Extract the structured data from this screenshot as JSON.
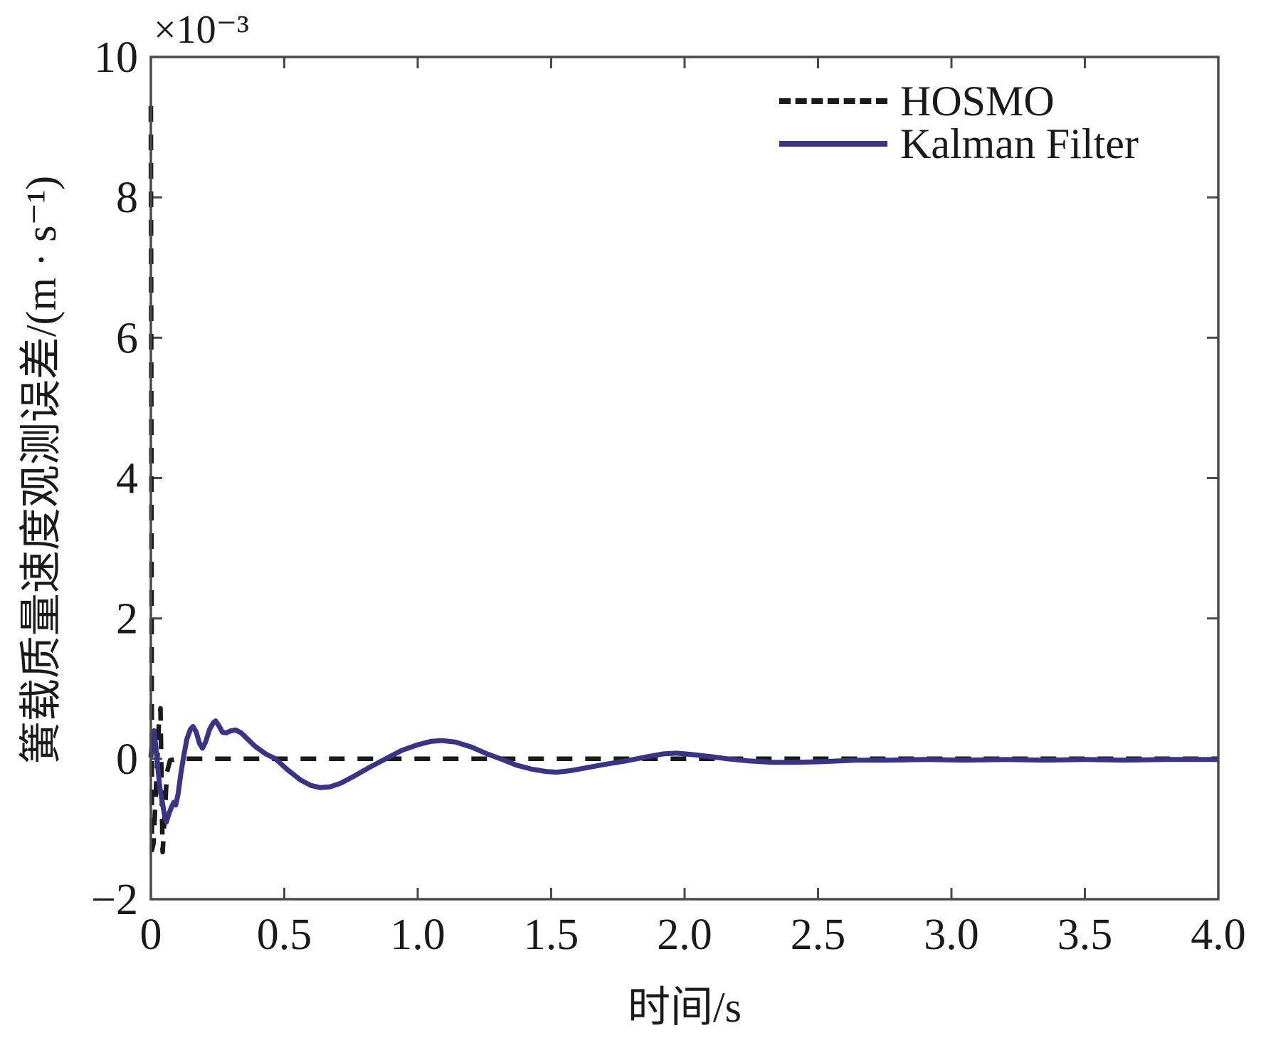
{
  "figure": {
    "background_color": "#ffffff",
    "frame_color": "#4a4a4a",
    "text_color": "#1a1a1a"
  },
  "legend": {
    "position": "top-right",
    "items": [
      {
        "label": "HOSMO",
        "line_style": "dashed",
        "color": "#1a1a1a"
      },
      {
        "label": "Kalman Filter",
        "line_style": "solid",
        "color": "#3a3489"
      }
    ]
  },
  "chart_data": {
    "type": "line",
    "title": "",
    "xlabel": "时间/s",
    "ylabel": "簧载质量速度观测误差/(m · s⁻¹)",
    "y_offset_label": "×10⁻³",
    "y_unit_multiplier": 0.001,
    "xlim": [
      0,
      4
    ],
    "ylim": [
      -2,
      10
    ],
    "grid": false,
    "legend_position": "top-right",
    "x_ticks": [
      {
        "value": 0,
        "label": "0"
      },
      {
        "value": 0.5,
        "label": "0.5"
      },
      {
        "value": 1.0,
        "label": "1.0"
      },
      {
        "value": 1.5,
        "label": "1.5"
      },
      {
        "value": 2.0,
        "label": "2.0"
      },
      {
        "value": 2.5,
        "label": "2.5"
      },
      {
        "value": 3.0,
        "label": "3.0"
      },
      {
        "value": 3.5,
        "label": "3.5"
      },
      {
        "value": 4.0,
        "label": "4.0"
      }
    ],
    "y_ticks": [
      {
        "value": -2,
        "label": "−2"
      },
      {
        "value": 0,
        "label": "0"
      },
      {
        "value": 2,
        "label": "2"
      },
      {
        "value": 4,
        "label": "4"
      },
      {
        "value": 6,
        "label": "6"
      },
      {
        "value": 8,
        "label": "8"
      },
      {
        "value": 10,
        "label": "10"
      }
    ],
    "series": [
      {
        "name": "HOSMO",
        "style": "dashed",
        "color": "#1a1a1a",
        "units": "1e-3 m/s",
        "points": [
          [
            0,
            9.3
          ],
          [
            0.002,
            4.0
          ],
          [
            0.004,
            -1.3
          ],
          [
            0.01,
            -1.2
          ],
          [
            0.03,
            0.5
          ],
          [
            0.036,
            0.72
          ],
          [
            0.044,
            -1.33
          ],
          [
            0.052,
            -0.8
          ],
          [
            0.06,
            -0.2
          ],
          [
            0.072,
            -0.02
          ],
          [
            0.1,
            0.0
          ],
          [
            0.5,
            0.0
          ],
          [
            1.0,
            0.0
          ],
          [
            1.5,
            0.0
          ],
          [
            2.0,
            0.0
          ],
          [
            2.5,
            0.0
          ],
          [
            3.0,
            0.0
          ],
          [
            3.5,
            0.0
          ],
          [
            4.0,
            0.0
          ]
        ]
      },
      {
        "name": "Kalman Filter",
        "style": "solid",
        "color": "#3a3489",
        "units": "1e-3 m/s",
        "points": [
          [
            0,
            0.02
          ],
          [
            0.005,
            0.22
          ],
          [
            0.012,
            0.4
          ],
          [
            0.018,
            0.18
          ],
          [
            0.025,
            -0.08
          ],
          [
            0.033,
            -0.4
          ],
          [
            0.042,
            -0.6
          ],
          [
            0.05,
            -0.78
          ],
          [
            0.058,
            -0.9
          ],
          [
            0.068,
            -0.78
          ],
          [
            0.078,
            -0.68
          ],
          [
            0.086,
            -0.62
          ],
          [
            0.093,
            -0.66
          ],
          [
            0.102,
            -0.5
          ],
          [
            0.112,
            -0.22
          ],
          [
            0.122,
            0.02
          ],
          [
            0.135,
            0.28
          ],
          [
            0.148,
            0.42
          ],
          [
            0.158,
            0.46
          ],
          [
            0.17,
            0.38
          ],
          [
            0.182,
            0.22
          ],
          [
            0.193,
            0.15
          ],
          [
            0.205,
            0.24
          ],
          [
            0.22,
            0.42
          ],
          [
            0.235,
            0.52
          ],
          [
            0.243,
            0.54
          ],
          [
            0.255,
            0.47
          ],
          [
            0.268,
            0.38
          ],
          [
            0.282,
            0.37
          ],
          [
            0.3,
            0.4
          ],
          [
            0.318,
            0.41
          ],
          [
            0.338,
            0.37
          ],
          [
            0.36,
            0.29
          ],
          [
            0.39,
            0.18
          ],
          [
            0.43,
            0.07
          ],
          [
            0.467,
            0.0
          ],
          [
            0.51,
            -0.15
          ],
          [
            0.56,
            -0.3
          ],
          [
            0.6,
            -0.38
          ],
          [
            0.635,
            -0.41
          ],
          [
            0.67,
            -0.4
          ],
          [
            0.71,
            -0.35
          ],
          [
            0.76,
            -0.25
          ],
          [
            0.82,
            -0.12
          ],
          [
            0.88,
            0.0
          ],
          [
            0.94,
            0.12
          ],
          [
            1.0,
            0.2
          ],
          [
            1.05,
            0.25
          ],
          [
            1.09,
            0.26
          ],
          [
            1.14,
            0.24
          ],
          [
            1.2,
            0.17
          ],
          [
            1.26,
            0.07
          ],
          [
            1.31,
            0.0
          ],
          [
            1.37,
            -0.09
          ],
          [
            1.43,
            -0.15
          ],
          [
            1.48,
            -0.18
          ],
          [
            1.52,
            -0.19
          ],
          [
            1.57,
            -0.17
          ],
          [
            1.63,
            -0.13
          ],
          [
            1.7,
            -0.08
          ],
          [
            1.78,
            -0.03
          ],
          [
            1.86,
            0.03
          ],
          [
            1.92,
            0.07
          ],
          [
            1.97,
            0.08
          ],
          [
            2.03,
            0.06
          ],
          [
            2.1,
            0.03
          ],
          [
            2.16,
            0.0
          ],
          [
            2.24,
            -0.03
          ],
          [
            2.33,
            -0.05
          ],
          [
            2.42,
            -0.05
          ],
          [
            2.52,
            -0.04
          ],
          [
            2.64,
            -0.02
          ],
          [
            2.76,
            -0.02
          ],
          [
            2.9,
            -0.01
          ],
          [
            3.05,
            -0.02
          ],
          [
            3.2,
            -0.01
          ],
          [
            3.35,
            -0.02
          ],
          [
            3.5,
            -0.01
          ],
          [
            3.65,
            -0.02
          ],
          [
            3.8,
            -0.01
          ],
          [
            4.0,
            -0.01
          ]
        ]
      }
    ]
  }
}
